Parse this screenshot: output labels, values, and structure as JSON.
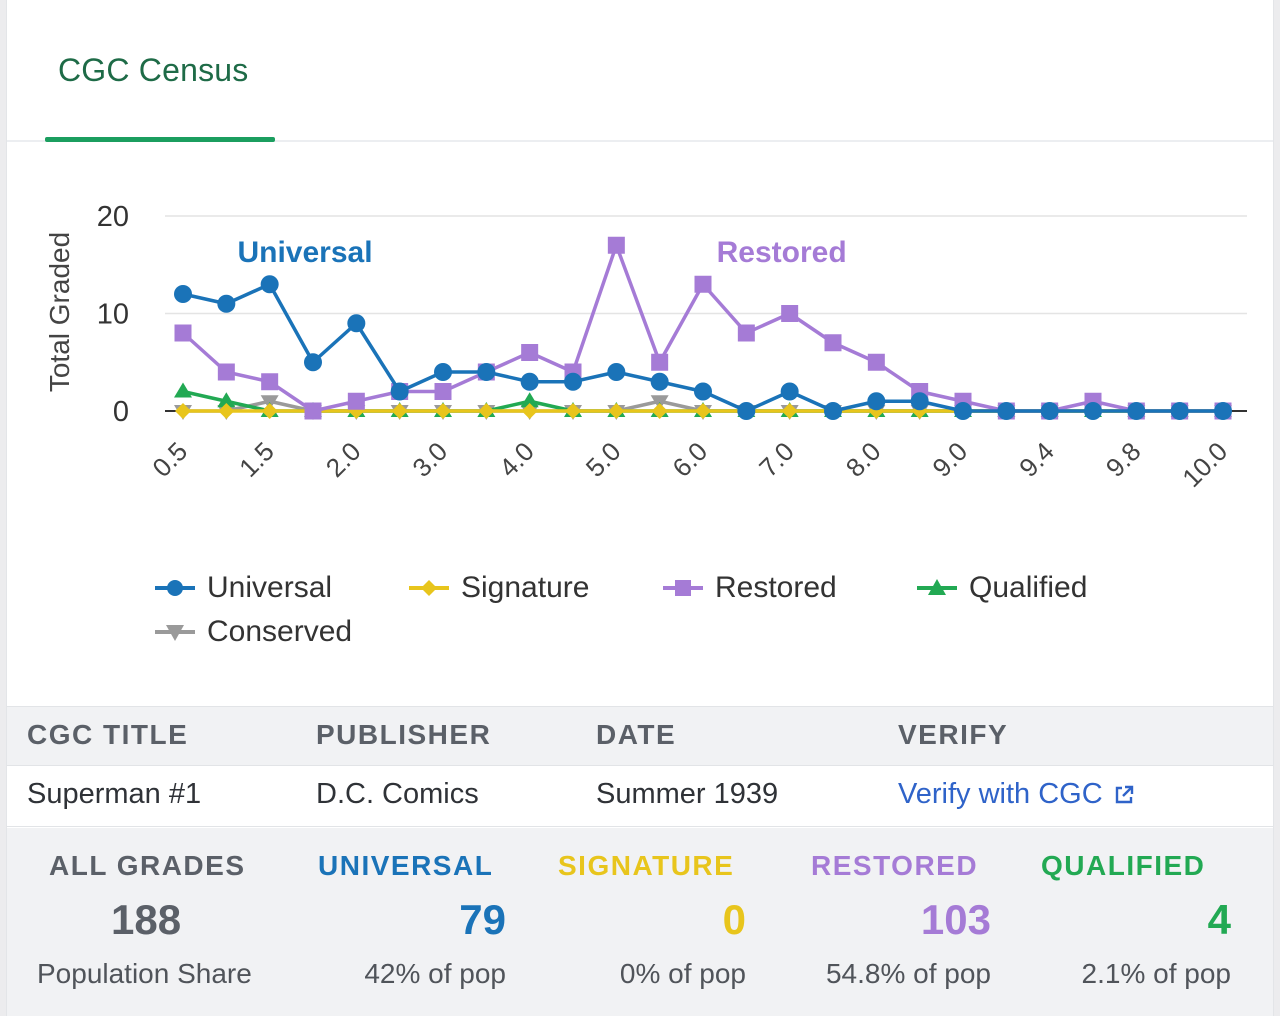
{
  "tabs": [
    {
      "label": "CGC Census"
    }
  ],
  "colors": {
    "universal": "#1a73b8",
    "signature": "#e8c51c",
    "restored": "#a57bd6",
    "qualified": "#22a953",
    "conserved": "#9a9a9a",
    "accent": "#1b9e5f"
  },
  "chart_data": {
    "type": "line",
    "ylabel": "Total Graded",
    "ylim": [
      0,
      20
    ],
    "yticks": [
      0,
      10,
      20
    ],
    "x": [
      "0.5",
      "1.0",
      "1.5",
      "1.8",
      "2.0",
      "2.5",
      "3.0",
      "3.5",
      "4.0",
      "4.5",
      "5.0",
      "5.5",
      "6.0",
      "6.5",
      "7.0",
      "7.5",
      "8.0",
      "8.5",
      "9.0",
      "9.2",
      "9.4",
      "9.6",
      "9.8",
      "9.9",
      "10.0"
    ],
    "tick_labels": [
      "0.5",
      "",
      "1.5",
      "",
      "2.0",
      "",
      "3.0",
      "",
      "4.0",
      "",
      "5.0",
      "",
      "6.0",
      "",
      "7.0",
      "",
      "8.0",
      "",
      "9.0",
      "",
      "9.4",
      "",
      "9.8",
      "",
      "10.0"
    ],
    "series": [
      {
        "name": "Universal",
        "color": "#1a73b8",
        "marker": "circle",
        "values": [
          12,
          11,
          13,
          5,
          9,
          2,
          4,
          4,
          3,
          3,
          4,
          3,
          2,
          0,
          2,
          0,
          1,
          1,
          0,
          0,
          0,
          0,
          0,
          0,
          0
        ]
      },
      {
        "name": "Signature",
        "color": "#e8c51c",
        "marker": "diamond",
        "values": [
          0,
          0,
          0,
          0,
          0,
          0,
          0,
          0,
          0,
          0,
          0,
          0,
          0,
          0,
          0,
          0,
          0,
          0,
          0,
          0,
          0,
          0,
          0,
          0,
          0
        ]
      },
      {
        "name": "Restored",
        "color": "#a57bd6",
        "marker": "square",
        "values": [
          8,
          4,
          3,
          0,
          1,
          2,
          2,
          4,
          6,
          4,
          17,
          5,
          13,
          8,
          10,
          7,
          5,
          2,
          1,
          0,
          0,
          1,
          0,
          0,
          0
        ]
      },
      {
        "name": "Qualified",
        "color": "#22a953",
        "marker": "triangle",
        "values": [
          2,
          1,
          0,
          0,
          0,
          0,
          0,
          0,
          1,
          0,
          0,
          0,
          0,
          0,
          0,
          0,
          0,
          0,
          0,
          0,
          0,
          0,
          0,
          0,
          0
        ]
      },
      {
        "name": "Conserved",
        "color": "#9a9a9a",
        "marker": "triangle-down",
        "values": [
          0,
          0,
          1,
          0,
          0,
          0,
          0,
          0,
          0,
          0,
          0,
          1,
          0,
          0,
          0,
          0,
          0,
          0,
          0,
          0,
          0,
          0,
          0,
          0,
          0
        ]
      }
    ],
    "annotations": [
      {
        "text": "Universal",
        "series": "Universal",
        "near_x": "1.8",
        "y": 15.5
      },
      {
        "text": "Restored",
        "series": "Restored",
        "near_x": "7.0",
        "y": 15.5
      }
    ],
    "grid": true,
    "legend": "bottom"
  },
  "info": {
    "headers": [
      "CGC TITLE",
      "PUBLISHER",
      "DATE",
      "VERIFY"
    ],
    "title": "Superman #1",
    "publisher": "D.C. Comics",
    "date": "Summer 1939",
    "verify_label": "Verify with CGC",
    "verify_icon": "external-link-icon"
  },
  "stats": [
    {
      "label": "ALL GRADES",
      "value": "188",
      "sub": "Population Share",
      "color": "#5b6068"
    },
    {
      "label": "UNIVERSAL",
      "value": "79",
      "sub": "42% of pop",
      "color": "#1a73b8"
    },
    {
      "label": "SIGNATURE",
      "value": "0",
      "sub": "0% of pop",
      "color": "#e8c51c"
    },
    {
      "label": "RESTORED",
      "value": "103",
      "sub": "54.8% of pop",
      "color": "#a57bd6"
    },
    {
      "label": "QUALIFIED",
      "value": "4",
      "sub": "2.1% of pop",
      "color": "#22a953"
    }
  ]
}
